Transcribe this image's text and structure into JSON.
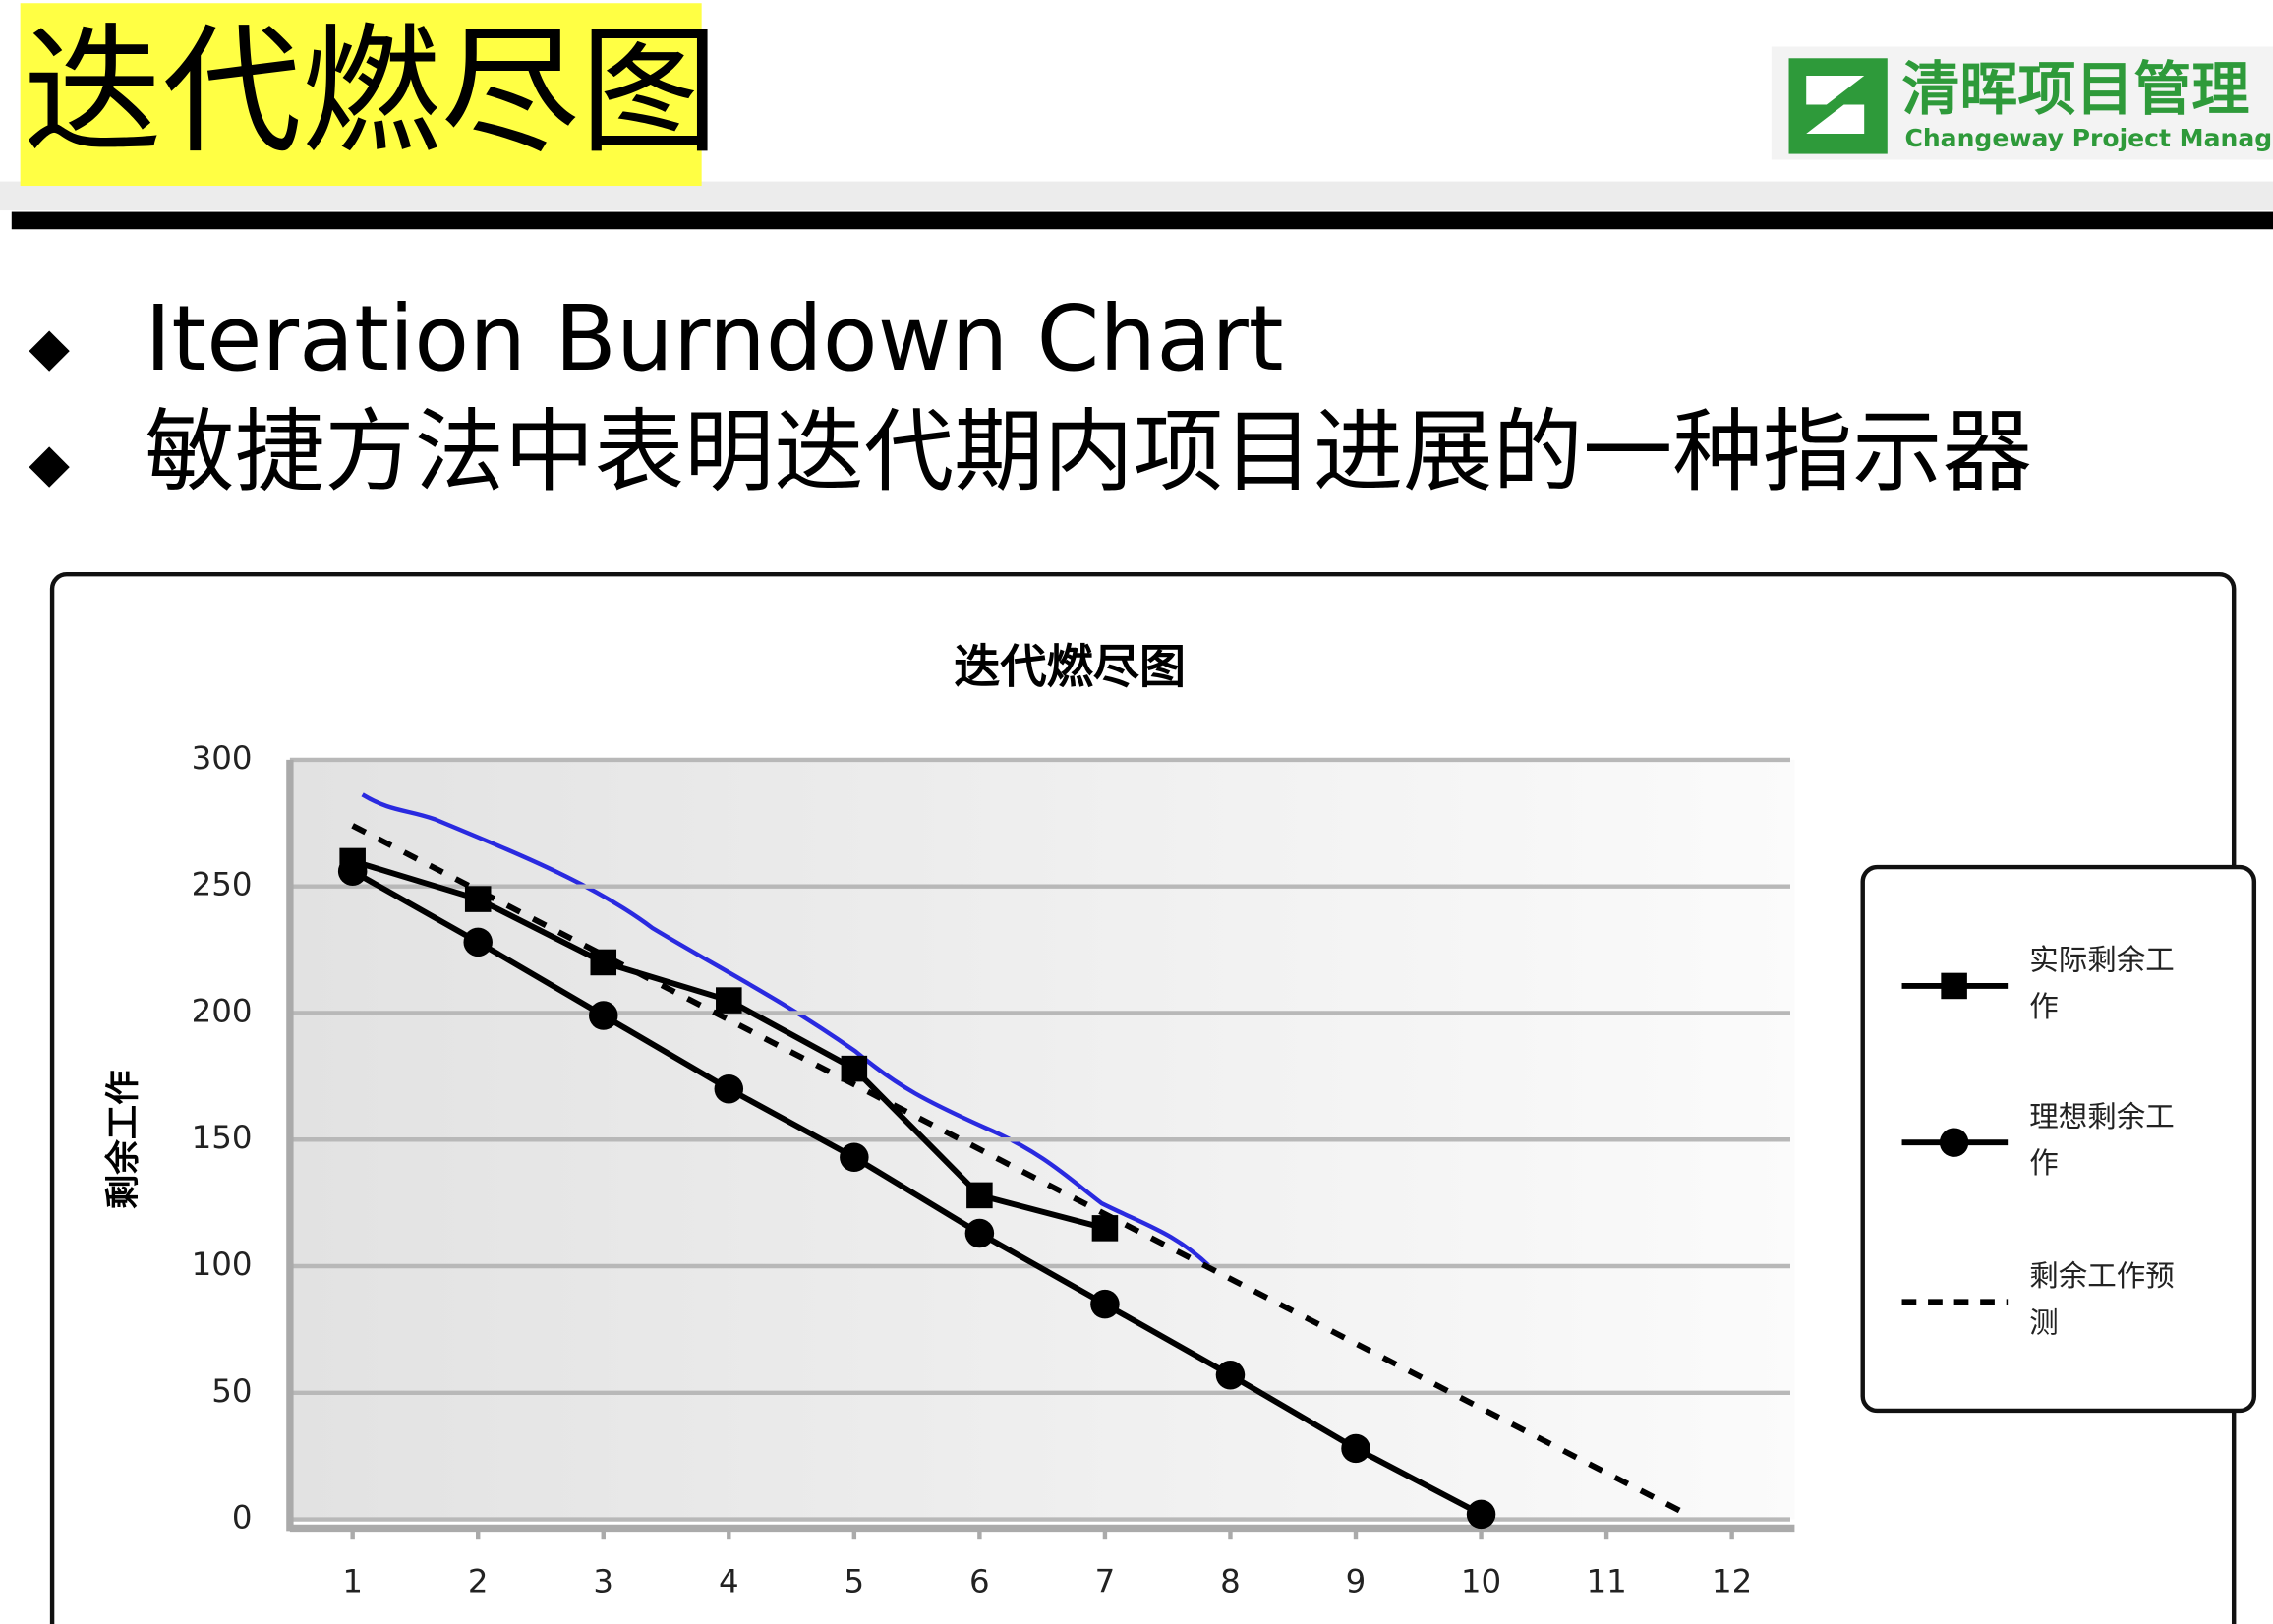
{
  "header": {
    "title": "迭代燃尽图",
    "logo_cn": "清晖项目管理",
    "logo_en": "Changeway Project Management"
  },
  "bullets": [
    "Iteration Burndown Chart",
    "敏捷方法中表明迭代期内项目进展的一种指示器"
  ],
  "chart_data": {
    "type": "line",
    "title": "迭代燃尽图",
    "y_label": "剩余工作",
    "xlim": [
      0.5,
      12.5
    ],
    "xticks": [
      1,
      2,
      3,
      4,
      5,
      6,
      7,
      8,
      9,
      10,
      11,
      12
    ],
    "ylim": [
      0,
      300
    ],
    "yticks": [
      0,
      50,
      100,
      150,
      200,
      250,
      300
    ],
    "grid": true,
    "legend": "right",
    "series": [
      {
        "name": "实际剩余工作",
        "color": "#000000",
        "marker": "square",
        "x": [
          1,
          2,
          3,
          4,
          5,
          6,
          7
        ],
        "values": [
          260,
          245,
          220,
          205,
          178,
          128,
          115
        ]
      },
      {
        "name": "理想剩余工作",
        "color": "#000000",
        "marker": "circle",
        "x": [
          1,
          2,
          3,
          4,
          5,
          6,
          7,
          8,
          9,
          10
        ],
        "values": [
          256,
          228,
          199,
          170,
          143,
          113,
          85,
          57,
          28,
          2
        ]
      },
      {
        "name": "剩余工作预测",
        "color": "#000000",
        "dashed": true,
        "x": [
          1,
          11.6
        ],
        "values": [
          274,
          3
        ]
      }
    ]
  }
}
